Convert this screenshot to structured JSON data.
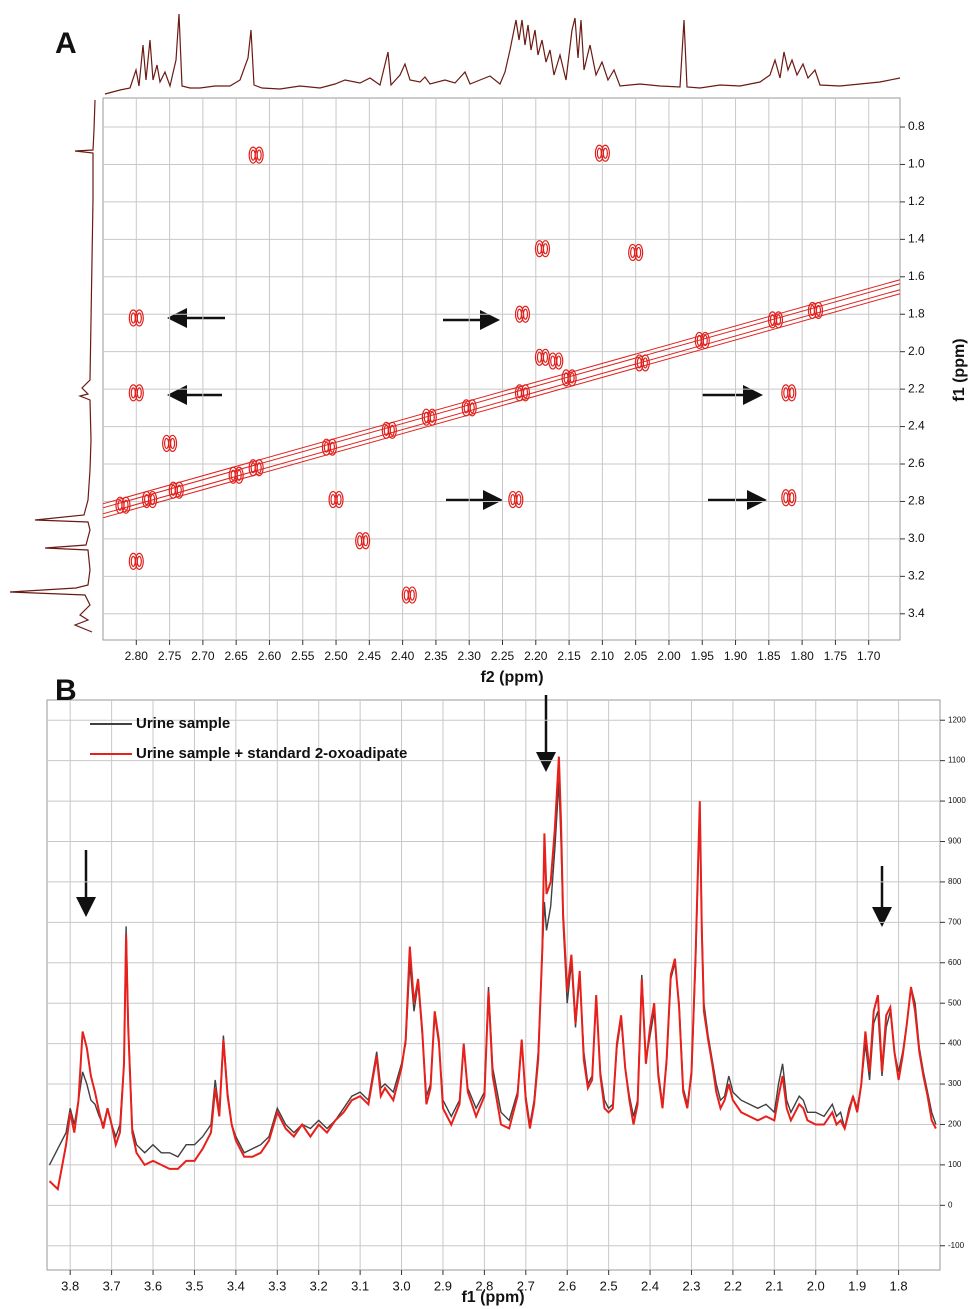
{
  "chart_data": [
    {
      "type": "scatter",
      "panel_label": "A",
      "xlabel": "f2 (ppm)",
      "ylabel": "f1 (ppm)",
      "color": "#e0201c",
      "grid": true,
      "xlim": [
        2.85,
        1.653
      ],
      "ylim": [
        3.54,
        0.645
      ],
      "xticks": [
        {
          "value": 2.8,
          "label": "2.80"
        },
        2.75,
        {
          "value": 2.7,
          "label": "2.70"
        },
        2.65,
        {
          "value": 2.6,
          "label": "2.60"
        },
        2.55,
        {
          "value": 2.5,
          "label": "2.50"
        },
        2.45,
        {
          "value": 2.4,
          "label": "2.40"
        },
        2.35,
        {
          "value": 2.3,
          "label": "2.30"
        },
        2.25,
        {
          "value": 2.2,
          "label": "2.20"
        },
        2.15,
        {
          "value": 2.1,
          "label": "2.10"
        },
        2.05,
        {
          "value": 2,
          "label": "2.00"
        },
        1.95,
        {
          "value": 1.9,
          "label": "1.90"
        },
        1.85,
        {
          "value": 1.8,
          "label": "1.80"
        },
        1.75,
        {
          "value": 1.7,
          "label": "1.70"
        }
      ],
      "yticks": [
        0.8,
        {
          "value": 1,
          "label": "1.0"
        },
        1.2,
        1.4,
        1.6,
        1.8,
        {
          "value": 2,
          "label": "2.0"
        },
        2.2,
        2.4,
        2.6,
        2.8,
        {
          "value": 3,
          "label": "3.0"
        },
        3.2,
        3.4
      ],
      "x": [
        2.62,
        2.1,
        2.19,
        2.05,
        2.8,
        2.22,
        2.8,
        1.82,
        2.75,
        2.5,
        2.23,
        1.82,
        2.8,
        2.46,
        2.39,
        2.19,
        2.17,
        2.82,
        2.78,
        2.74,
        2.65,
        2.62,
        2.51,
        2.42,
        2.36,
        2.3,
        2.22,
        2.15,
        2.04,
        1.95,
        1.84,
        1.78
      ],
      "values": [
        0.95,
        0.94,
        1.45,
        1.47,
        1.82,
        1.8,
        2.22,
        2.22,
        2.49,
        2.79,
        2.79,
        2.78,
        3.12,
        3.01,
        3.3,
        2.03,
        2.05,
        2.82,
        2.79,
        2.74,
        2.66,
        2.62,
        2.51,
        2.42,
        2.35,
        2.3,
        2.22,
        2.14,
        2.06,
        1.94,
        1.83,
        1.78
      ]
    },
    {
      "type": "line",
      "panel_label": "B",
      "xlabel": "f1 (ppm)",
      "grid": true,
      "legend": "upper left",
      "xlim": [
        3.856,
        1.7
      ],
      "ylim": [
        -160,
        1250
      ],
      "xticks": [
        3.8,
        3.7,
        3.6,
        3.5,
        3.4,
        3.3,
        3.2,
        3.1,
        {
          "value": 3,
          "label": "3.0"
        },
        2.9,
        2.8,
        2.7,
        2.6,
        2.5,
        2.4,
        2.3,
        2.2,
        2.1,
        {
          "value": 2,
          "label": "2.0"
        },
        1.9,
        1.8
      ],
      "yticks": [
        -100,
        0,
        100,
        200,
        300,
        400,
        500,
        600,
        700,
        800,
        900,
        1000,
        1100,
        1200
      ],
      "x": [
        3.85,
        3.83,
        3.81,
        3.8,
        3.79,
        3.78,
        3.77,
        3.76,
        3.75,
        3.74,
        3.73,
        3.72,
        3.71,
        3.7,
        3.69,
        3.68,
        3.67,
        3.665,
        3.66,
        3.65,
        3.64,
        3.62,
        3.6,
        3.58,
        3.56,
        3.54,
        3.52,
        3.5,
        3.48,
        3.46,
        3.45,
        3.44,
        3.43,
        3.42,
        3.41,
        3.4,
        3.38,
        3.36,
        3.34,
        3.32,
        3.3,
        3.28,
        3.26,
        3.24,
        3.22,
        3.2,
        3.18,
        3.16,
        3.14,
        3.12,
        3.1,
        3.08,
        3.06,
        3.05,
        3.04,
        3.02,
        3.0,
        2.99,
        2.98,
        2.97,
        2.96,
        2.95,
        2.94,
        2.93,
        2.92,
        2.91,
        2.9,
        2.88,
        2.86,
        2.85,
        2.84,
        2.82,
        2.8,
        2.79,
        2.78,
        2.76,
        2.74,
        2.72,
        2.71,
        2.7,
        2.69,
        2.68,
        2.67,
        2.66,
        2.655,
        2.65,
        2.64,
        2.63,
        2.62,
        2.615,
        2.61,
        2.6,
        2.59,
        2.58,
        2.57,
        2.56,
        2.55,
        2.54,
        2.53,
        2.52,
        2.51,
        2.5,
        2.49,
        2.48,
        2.47,
        2.46,
        2.45,
        2.44,
        2.43,
        2.42,
        2.41,
        2.4,
        2.39,
        2.38,
        2.37,
        2.36,
        2.35,
        2.34,
        2.33,
        2.32,
        2.31,
        2.3,
        2.29,
        2.28,
        2.275,
        2.27,
        2.26,
        2.25,
        2.24,
        2.23,
        2.22,
        2.21,
        2.2,
        2.18,
        2.16,
        2.14,
        2.12,
        2.1,
        2.09,
        2.08,
        2.07,
        2.06,
        2.04,
        2.03,
        2.02,
        2.0,
        1.98,
        1.96,
        1.95,
        1.94,
        1.93,
        1.92,
        1.91,
        1.9,
        1.89,
        1.88,
        1.87,
        1.86,
        1.85,
        1.84,
        1.83,
        1.82,
        1.81,
        1.8,
        1.79,
        1.78,
        1.77,
        1.76,
        1.75,
        1.74,
        1.73,
        1.72,
        1.71
      ],
      "series": [
        {
          "name": "Urine sample",
          "color": "#404040",
          "values": [
            100,
            140,
            180,
            240,
            200,
            260,
            330,
            300,
            260,
            250,
            220,
            200,
            240,
            200,
            170,
            200,
            350,
            690,
            450,
            190,
            150,
            130,
            150,
            130,
            130,
            120,
            150,
            150,
            170,
            200,
            310,
            230,
            420,
            280,
            200,
            170,
            130,
            140,
            150,
            170,
            240,
            200,
            180,
            200,
            190,
            210,
            190,
            210,
            240,
            270,
            280,
            260,
            380,
            290,
            300,
            280,
            350,
            400,
            600,
            480,
            550,
            420,
            270,
            300,
            470,
            400,
            260,
            220,
            260,
            390,
            290,
            240,
            280,
            540,
            340,
            230,
            210,
            280,
            400,
            270,
            200,
            260,
            380,
            630,
            750,
            680,
            740,
            880,
            1050,
            900,
            700,
            500,
            600,
            440,
            570,
            380,
            300,
            320,
            510,
            330,
            260,
            240,
            250,
            390,
            460,
            340,
            270,
            220,
            260,
            570,
            360,
            420,
            480,
            330,
            250,
            350,
            560,
            600,
            500,
            290,
            250,
            320,
            600,
            990,
            700,
            500,
            420,
            360,
            300,
            260,
            270,
            320,
            280,
            260,
            250,
            240,
            250,
            230,
            300,
            350,
            260,
            230,
            270,
            260,
            230,
            230,
            220,
            250,
            220,
            230,
            190,
            240,
            270,
            240,
            300,
            400,
            310,
            450,
            480,
            320,
            440,
            480,
            380,
            330,
            380,
            450,
            540,
            500,
            390,
            330,
            280,
            230,
            200
          ]
        },
        {
          "name": "Urine sample + standard 2-oxoadipate",
          "color": "#e8201c",
          "values": [
            60,
            40,
            150,
            230,
            180,
            260,
            430,
            390,
            320,
            280,
            230,
            190,
            240,
            200,
            150,
            180,
            350,
            670,
            440,
            180,
            130,
            100,
            110,
            100,
            90,
            90,
            110,
            110,
            140,
            180,
            290,
            220,
            410,
            270,
            200,
            160,
            120,
            120,
            130,
            160,
            230,
            190,
            170,
            200,
            170,
            200,
            180,
            210,
            230,
            260,
            270,
            250,
            370,
            270,
            290,
            260,
            340,
            410,
            640,
            500,
            560,
            430,
            250,
            290,
            480,
            410,
            240,
            200,
            250,
            400,
            280,
            220,
            270,
            530,
            320,
            200,
            190,
            270,
            410,
            260,
            190,
            250,
            360,
            640,
            920,
            770,
            800,
            930,
            1110,
            950,
            720,
            530,
            620,
            450,
            580,
            360,
            290,
            310,
            520,
            320,
            240,
            230,
            240,
            400,
            470,
            340,
            260,
            200,
            250,
            560,
            350,
            440,
            500,
            320,
            240,
            360,
            570,
            610,
            490,
            280,
            240,
            330,
            620,
            1000,
            680,
            480,
            410,
            350,
            280,
            240,
            260,
            300,
            260,
            230,
            220,
            210,
            220,
            210,
            270,
            320,
            240,
            210,
            250,
            240,
            210,
            200,
            200,
            230,
            200,
            210,
            190,
            230,
            270,
            230,
            300,
            430,
            330,
            480,
            520,
            330,
            470,
            490,
            380,
            310,
            370,
            450,
            540,
            480,
            380,
            320,
            270,
            210,
            190
          ]
        }
      ]
    }
  ]
}
